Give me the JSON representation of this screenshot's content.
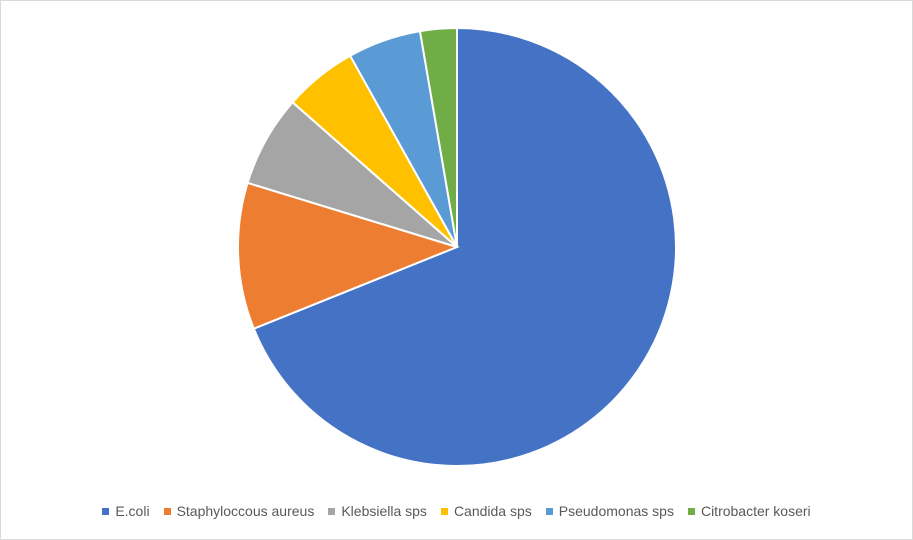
{
  "chart_data": {
    "type": "pie",
    "title": "",
    "categories": [
      "E.coli",
      "Staphyloccous aureus",
      "Klebsiella sps",
      "Candida sps",
      "Pseudomonas sps",
      "Citrobacter koseri"
    ],
    "values": [
      51,
      8,
      5,
      4,
      4,
      2
    ],
    "colors": [
      "#4472C4",
      "#ED7D31",
      "#A5A5A5",
      "#FFC000",
      "#5B9BD5",
      "#70AD47"
    ],
    "start_angle": "12 o'clock",
    "direction": "clockwise",
    "legend": "bottom",
    "data_labels": false
  }
}
